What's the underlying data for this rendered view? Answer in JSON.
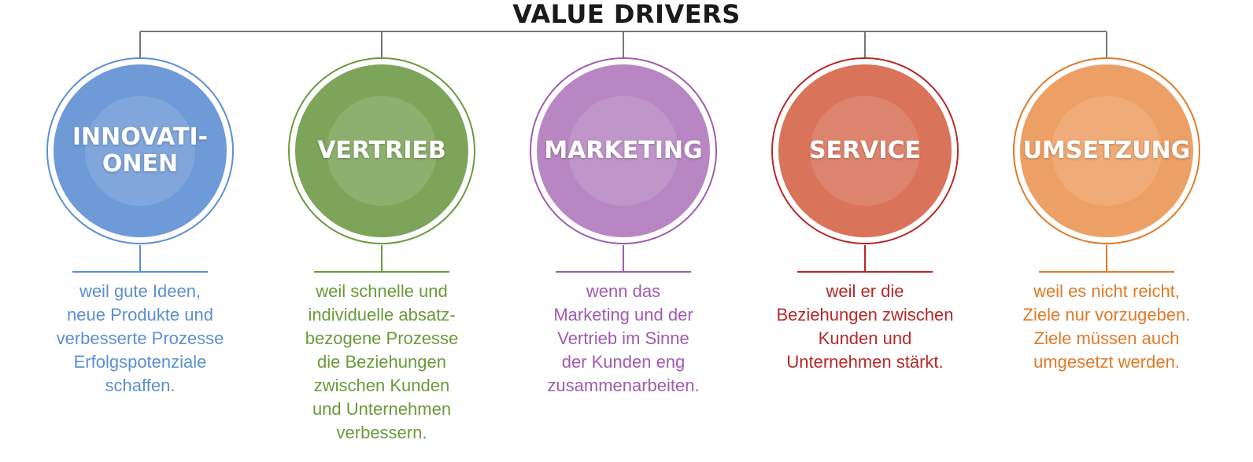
{
  "title": "VALUE DRIVERS",
  "drivers": [
    {
      "name": "INNOVATI-\nONEN",
      "color": "#5b8fd4",
      "fill": "#6f9ad8",
      "description": [
        "weil gute Ideen,",
        "neue Produkte und",
        "verbesserte Prozesse",
        "Erfolgspotenziale",
        "schaffen."
      ]
    },
    {
      "name": "VERTRIEB",
      "color": "#6a9a3a",
      "fill": "#7da55a",
      "description": [
        "weil schnelle und",
        "individuelle absatz-",
        "bezogene Prozesse",
        "die Beziehungen",
        "zwischen Kunden",
        "und Unternehmen",
        "verbessern."
      ]
    },
    {
      "name": "MARKETING",
      "color": "#a05bb0",
      "fill": "#b887c3",
      "description": [
        "wenn das",
        "Marketing und der",
        "Vertrieb im Sinne",
        "der Kunden eng",
        "zusammenarbeiten."
      ]
    },
    {
      "name": "SERVICE",
      "color": "#b82828",
      "fill": "#d9735a",
      "description": [
        "weil er die",
        "Beziehungen zwischen",
        "Kunden und",
        "Unternehmen stärkt."
      ]
    },
    {
      "name": "UMSETZUNG",
      "color": "#e07a28",
      "fill": "#eda066",
      "description": [
        "weil es nicht reicht,",
        "Ziele nur vorzugeben.",
        "Ziele müssen auch",
        "umgesetzt werden."
      ]
    }
  ]
}
